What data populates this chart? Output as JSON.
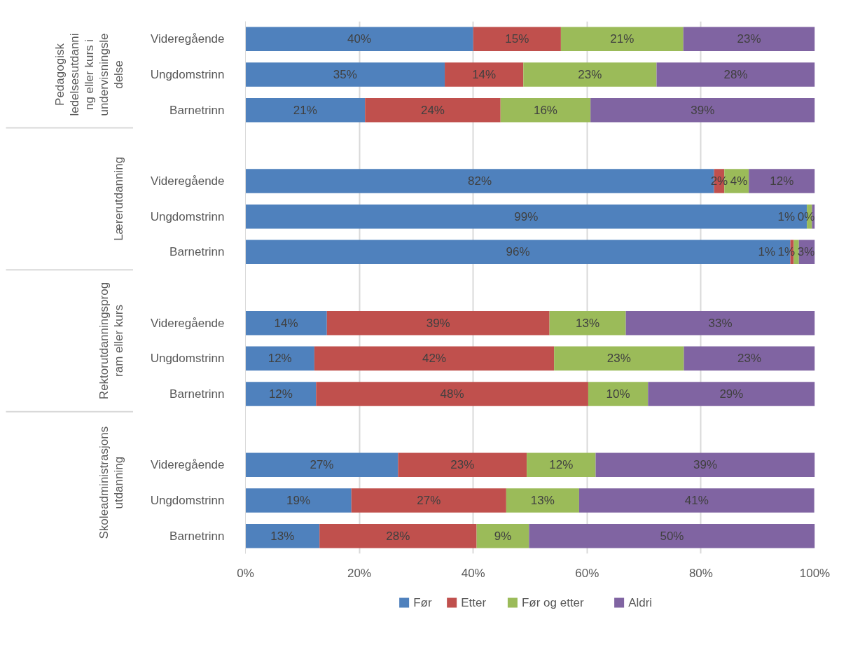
{
  "chart_data": {
    "type": "bar",
    "orientation": "horizontal",
    "stacked": true,
    "categories": [
      "Videregående",
      "Ungdomstrinn",
      "Barnetrinn",
      null,
      "Videregående",
      "Ungdomstrinn",
      "Barnetrinn",
      null,
      "Videregående",
      "Ungdomstrinn",
      "Barnetrinn",
      null,
      "Videregående",
      "Ungdomstrinn",
      "Barnetrinn"
    ],
    "series": [
      {
        "name": "Før",
        "color": "#4f81bd",
        "values": [
          40,
          35,
          21,
          null,
          82.3,
          98.6,
          95.7,
          null,
          14.3,
          12.1,
          12.4,
          null,
          26.8,
          18.6,
          13.0
        ],
        "value_labels": [
          "40%",
          "35%",
          "21%",
          null,
          "82%",
          "99%",
          "96%",
          null,
          "14%",
          "12%",
          "12%",
          null,
          "27%",
          "19%",
          "13%"
        ]
      },
      {
        "name": "Etter",
        "color": "#c0504d",
        "values": [
          15.4,
          13.8,
          23.8,
          null,
          1.8,
          0,
          0.6,
          null,
          39.1,
          42.1,
          47.8,
          null,
          22.6,
          27.2,
          27.6
        ],
        "value_labels": [
          "15%",
          "14%",
          "24%",
          null,
          "2%",
          null,
          "1%",
          null,
          "39%",
          "42%",
          "48%",
          null,
          "23%",
          "27%",
          "28%"
        ]
      },
      {
        "name": "Før og etter",
        "color": "#9bbb59",
        "values": [
          21.5,
          23.4,
          15.8,
          null,
          4.3,
          0.9,
          0.9,
          null,
          13.4,
          22.8,
          10.5,
          null,
          12.1,
          12.8,
          9.2
        ],
        "value_labels": [
          "21%",
          "23%",
          "16%",
          null,
          "4%",
          "1%",
          "1%",
          null,
          "13%",
          "23%",
          "10%",
          null,
          "12%",
          "13%",
          "9%"
        ]
      },
      {
        "name": "Aldri",
        "color": "#8064a2",
        "values": [
          23.1,
          27.8,
          39.4,
          null,
          11.6,
          0.5,
          2.8,
          null,
          33.2,
          23.0,
          29.3,
          null,
          38.5,
          41.3,
          50.2
        ],
        "value_labels": [
          "23%",
          "28%",
          "39%",
          null,
          "12%",
          "0%",
          "3%",
          null,
          "33%",
          "23%",
          "29%",
          null,
          "39%",
          "41%",
          "50%"
        ]
      }
    ],
    "xlim": [
      0,
      100
    ],
    "xticks": [
      {
        "value": 0,
        "label": "0%"
      },
      {
        "value": 20,
        "label": "20%"
      },
      {
        "value": 40,
        "label": "40%"
      },
      {
        "value": 60,
        "label": "60%"
      },
      {
        "value": 80,
        "label": "80%"
      },
      {
        "value": 100,
        "label": "100%"
      }
    ],
    "annotations": [
      "Pedagogisk ledelsesutdanning eller kurs i undervisningsledelse",
      "Lærerutdanning",
      "Rektorutdanningsprogram eller kurs",
      "Skoleadministrasjonsutdanning"
    ],
    "grid": "x",
    "legend": "bottom"
  }
}
